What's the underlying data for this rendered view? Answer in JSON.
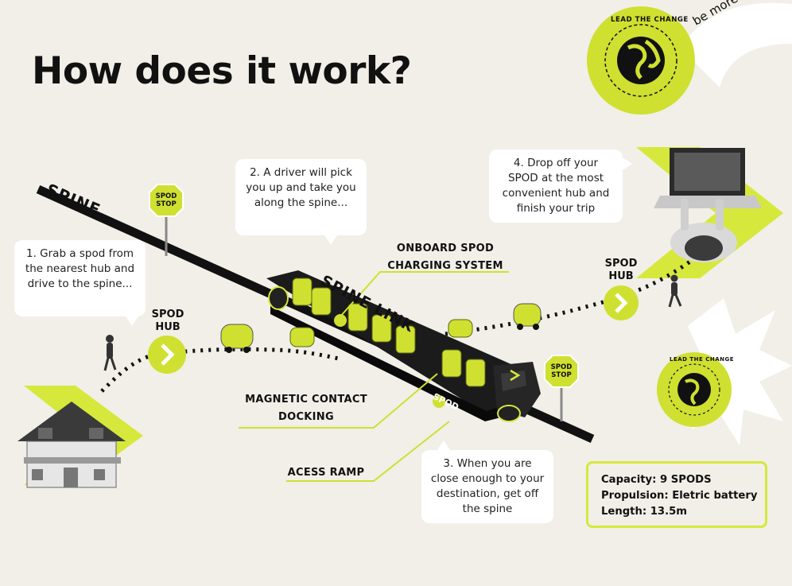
{
  "title": "How does it work?",
  "colors": {
    "accent": "#d6e83b",
    "dark": "#111111",
    "background": "#f1efe8",
    "bubble": "#ffffff"
  },
  "spine_label": "SPINE",
  "spine_link_label": "SPINE LINK",
  "steps": [
    "1.  Grab a spod from the nearest hub and drive to the spine...",
    "2. A driver will pick you up and take you along the spine...",
    "3. When you are close enough to your destination, get off the spine",
    "4. Drop off your SPOD at the most convenient hub and finish your trip"
  ],
  "callouts": {
    "charging_line1": "ONBOARD SPOD",
    "charging_line2": "CHARGING SYSTEM",
    "docking_line1": "MAGNETIC CONTACT",
    "docking_line2": "DOCKING",
    "ramp": "ACESS RAMP"
  },
  "hubs": {
    "left_line1": "SPOD",
    "left_line2": "HUB",
    "right_line1": "SPOD",
    "right_line2": "HUB"
  },
  "stops": {
    "line1": "SPOD",
    "line2": "STOP"
  },
  "vehicle_brand": "SPOD",
  "specs": {
    "capacity": "Capacity: 9 SPODS",
    "propulsion": "Propulsion: Eletric battery",
    "length": "Length: 13.5m"
  },
  "badge": {
    "text": "LEAD THE CHANGE",
    "tagline": "be more sustaina"
  },
  "icons": [
    "globe-icon",
    "chevron-right-icon",
    "stop-sign-icon",
    "house-icon",
    "laptop-icon",
    "pedestrian-icon"
  ]
}
